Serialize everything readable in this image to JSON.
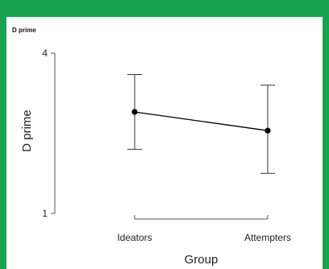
{
  "chart_data": {
    "type": "line",
    "title": "D prime",
    "xlabel": "Group",
    "ylabel": "D prime",
    "categories": [
      "Ideators",
      "Attempters"
    ],
    "ylim": [
      1,
      4
    ],
    "yticks": [
      1,
      4
    ],
    "series": [
      {
        "values": [
          2.9,
          2.55
        ],
        "error_low": [
          2.2,
          1.75
        ],
        "error_high": [
          3.6,
          3.4
        ]
      }
    ],
    "grid": false,
    "colors": {
      "line": "#000000",
      "axis": "#555555",
      "background": "#ffffff",
      "frame": "#1aa34f"
    }
  }
}
